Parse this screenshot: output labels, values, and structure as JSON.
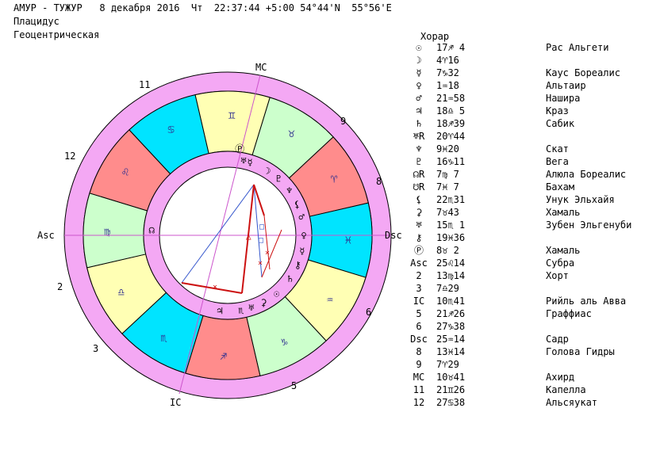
{
  "header": {
    "line1": "АМУР - ТУЖУР   8 декабря 2016  Чт  22:37:44 +5:00 54°44'N  55°56'E",
    "line2": "Плацидус",
    "line3": "Геоцентрическая"
  },
  "table": {
    "title": "Хорар",
    "rows": [
      {
        "label": "☉",
        "pos": "17♐ 4",
        "star": "Рас Альгети"
      },
      {
        "label": "☽",
        "pos": "4♈16",
        "star": ""
      },
      {
        "label": "☿",
        "pos": "7♑32",
        "star": "Каус Бореалис"
      },
      {
        "label": "♀",
        "pos": "1♒18",
        "star": "Альтаир"
      },
      {
        "label": "♂",
        "pos": "21♒58",
        "star": "Нашира"
      },
      {
        "label": "♃",
        "pos": "18♎ 5",
        "star": "Краз"
      },
      {
        "label": "♄",
        "pos": "18♐39",
        "star": "Сабик"
      },
      {
        "label": "♅R",
        "pos": "20♈44",
        "star": ""
      },
      {
        "label": "♆",
        "pos": "9♓20",
        "star": "Скат"
      },
      {
        "label": "♇",
        "pos": "16♑11",
        "star": "Вега"
      },
      {
        "label": "☊R",
        "pos": "7♍ 7",
        "star": "Алюла Бореалис"
      },
      {
        "label": "☋R",
        "pos": "7♓ 7",
        "star": "Бахам"
      },
      {
        "label": "⚸",
        "pos": "22♏31",
        "star": "Унук Эльхайя"
      },
      {
        "label": "⚳",
        "pos": "7♉43",
        "star": "Хамаль"
      },
      {
        "label": "♅",
        "pos": "15♏ 1",
        "star": "Зубен Эльгенуби"
      },
      {
        "label": "⚷",
        "pos": "19♓36",
        "star": ""
      },
      {
        "label": "Ⓟ",
        "pos": "8♉ 2",
        "star": "Хамаль"
      },
      {
        "label": "Asc",
        "pos": "25♌14",
        "star": "Субра"
      },
      {
        "label": "2",
        "pos": "13♍14",
        "star": "Хорт"
      },
      {
        "label": "3",
        "pos": "7♎29",
        "star": ""
      },
      {
        "label": "IC",
        "pos": "10♏41",
        "star": "Рийль аль Авва"
      },
      {
        "label": "5",
        "pos": "21♐26",
        "star": "Граффиас"
      },
      {
        "label": "6",
        "pos": "27♑38",
        "star": ""
      },
      {
        "label": "Dsc",
        "pos": "25♒14",
        "star": "Садр"
      },
      {
        "label": "8",
        "pos": "13♓14",
        "star": "Голова Гидры"
      },
      {
        "label": "9",
        "pos": "7♈29",
        "star": ""
      },
      {
        "label": "MC",
        "pos": "10♉41",
        "star": "Ахирд"
      },
      {
        "label": "11",
        "pos": "21♊26",
        "star": "Капелла"
      },
      {
        "label": "12",
        "pos": "27♋38",
        "star": "Альсяукат"
      }
    ]
  },
  "chart": {
    "asc_label": "Asc",
    "dsc_label": "Dsc",
    "mc_label": "MC",
    "ic_label": "IC",
    "house_numbers": [
      "11",
      "9",
      "12",
      "8",
      "2",
      "6",
      "3",
      "5"
    ],
    "signs": [
      {
        "glyph": "♉",
        "color": "#ccffcc"
      },
      {
        "glyph": "♈",
        "color": "#ff8c8c"
      },
      {
        "glyph": "♓",
        "color": "#00e4ff"
      },
      {
        "glyph": "♒",
        "color": "#ffffb4"
      },
      {
        "glyph": "♑",
        "color": "#ccffcc"
      },
      {
        "glyph": "♐",
        "color": "#ff8c8c"
      },
      {
        "glyph": "♏",
        "color": "#00e4ff"
      },
      {
        "glyph": "♎",
        "color": "#ffffb4"
      },
      {
        "glyph": "♍",
        "color": "#ccffcc"
      },
      {
        "glyph": "♌",
        "color": "#ff8c8c"
      },
      {
        "glyph": "♋",
        "color": "#00e4ff"
      },
      {
        "glyph": "♊",
        "color": "#ffffb4"
      }
    ],
    "planet_glyphs": [
      "Ⓟ",
      "♅",
      "☿",
      "☽",
      "♇",
      "♆",
      "⚸",
      "♂",
      "♀",
      "☿",
      "⚷",
      "♄",
      "☉",
      "⚳",
      "♅",
      "♃",
      "☊",
      "♏",
      "⚷",
      "♆"
    ],
    "ring_color": "#f4a8f4",
    "line_color": "#cc55cc"
  }
}
